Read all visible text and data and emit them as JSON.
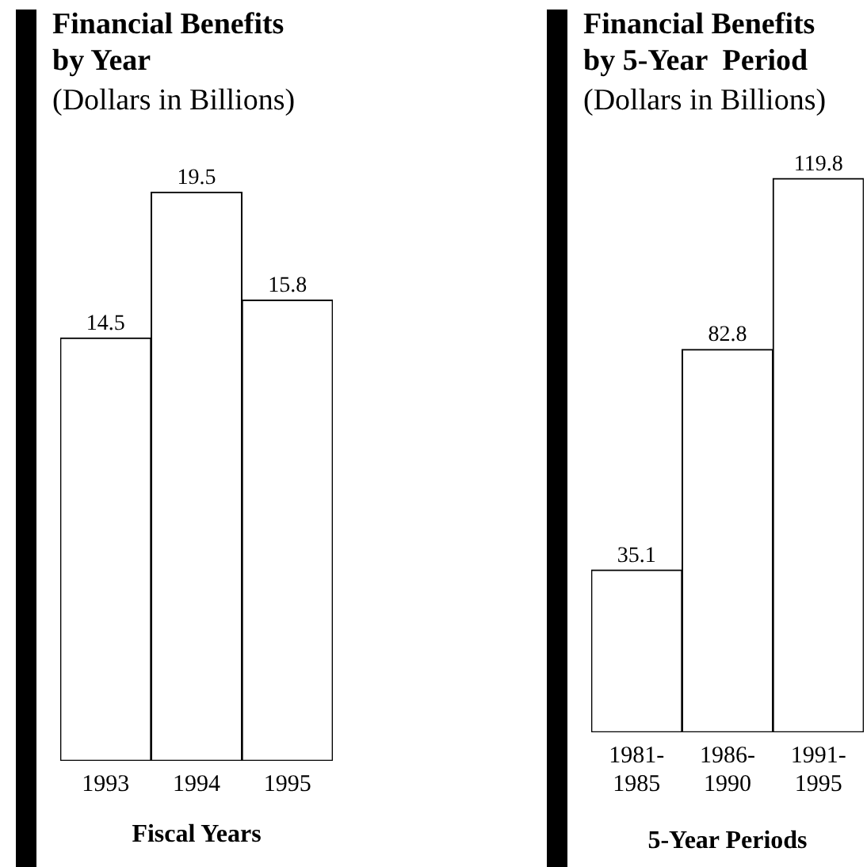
{
  "chart_data": [
    {
      "type": "bar",
      "title": "Financial Benefits by Year",
      "subtitle": "(Dollars in Billions)",
      "xlabel": "Fiscal Years",
      "categories": [
        "1993",
        "1994",
        "1995"
      ],
      "values": [
        14.5,
        19.5,
        15.8
      ],
      "color": "#ffffff",
      "data_labels": true,
      "legend": false,
      "grid": false
    },
    {
      "type": "bar",
      "title": "Financial Benefits by 5-Year  Period",
      "subtitle": "(Dollars in Billions)",
      "xlabel": "5-Year Periods",
      "categories": [
        "1981-1985",
        "1986-1990",
        "1991-1995"
      ],
      "values": [
        35.1,
        82.8,
        119.8
      ],
      "color": "#ffffff",
      "data_labels": true,
      "legend": false,
      "grid": false
    }
  ]
}
